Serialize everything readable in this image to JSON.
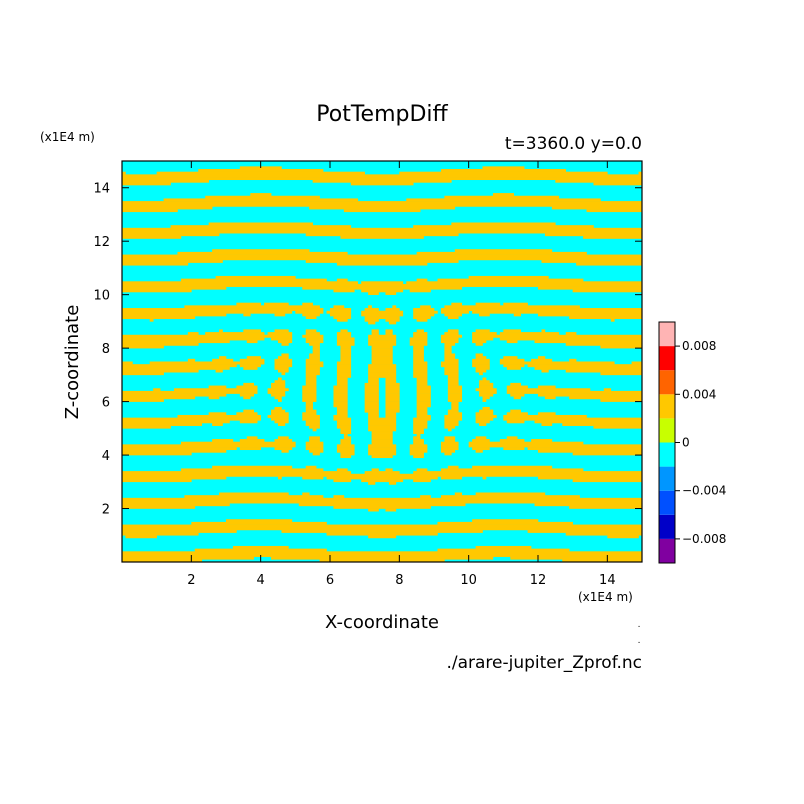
{
  "chart_data": {
    "type": "heatmap",
    "title": "PotTempDiff",
    "subtitle": "t=3360.0 y=0.0",
    "xlabel": "X-coordinate",
    "ylabel": "Z-coordinate",
    "x_unit": "(x1E4 m)",
    "y_unit": "(x1E4 m)",
    "xlim": [
      0,
      15
    ],
    "ylim": [
      0,
      15
    ],
    "xticks": [
      2,
      4,
      6,
      8,
      10,
      12,
      14
    ],
    "yticks": [
      2,
      4,
      6,
      8,
      10,
      12,
      14
    ],
    "grid": false,
    "field_values_present": [
      -0.002,
      0.002
    ],
    "colorbar": {
      "levels": [
        -0.01,
        -0.008,
        -0.006,
        -0.004,
        -0.002,
        0,
        0.002,
        0.004,
        0.006,
        0.008,
        0.01
      ],
      "colors": [
        "#8000a0",
        "#0000c8",
        "#0050ff",
        "#0096ff",
        "#00ffff",
        "#c8ff00",
        "#ffc800",
        "#ff6400",
        "#ff0000",
        "#ffb4b4"
      ],
      "tick_values": [
        -0.008,
        -0.004,
        0,
        0.004,
        0.008
      ],
      "tick_labels": [
        "−0.008",
        "−0.004",
        "0",
        "0.004",
        "0.008"
      ]
    },
    "source_file": "./arare-jupiter_Zprof.nc"
  }
}
